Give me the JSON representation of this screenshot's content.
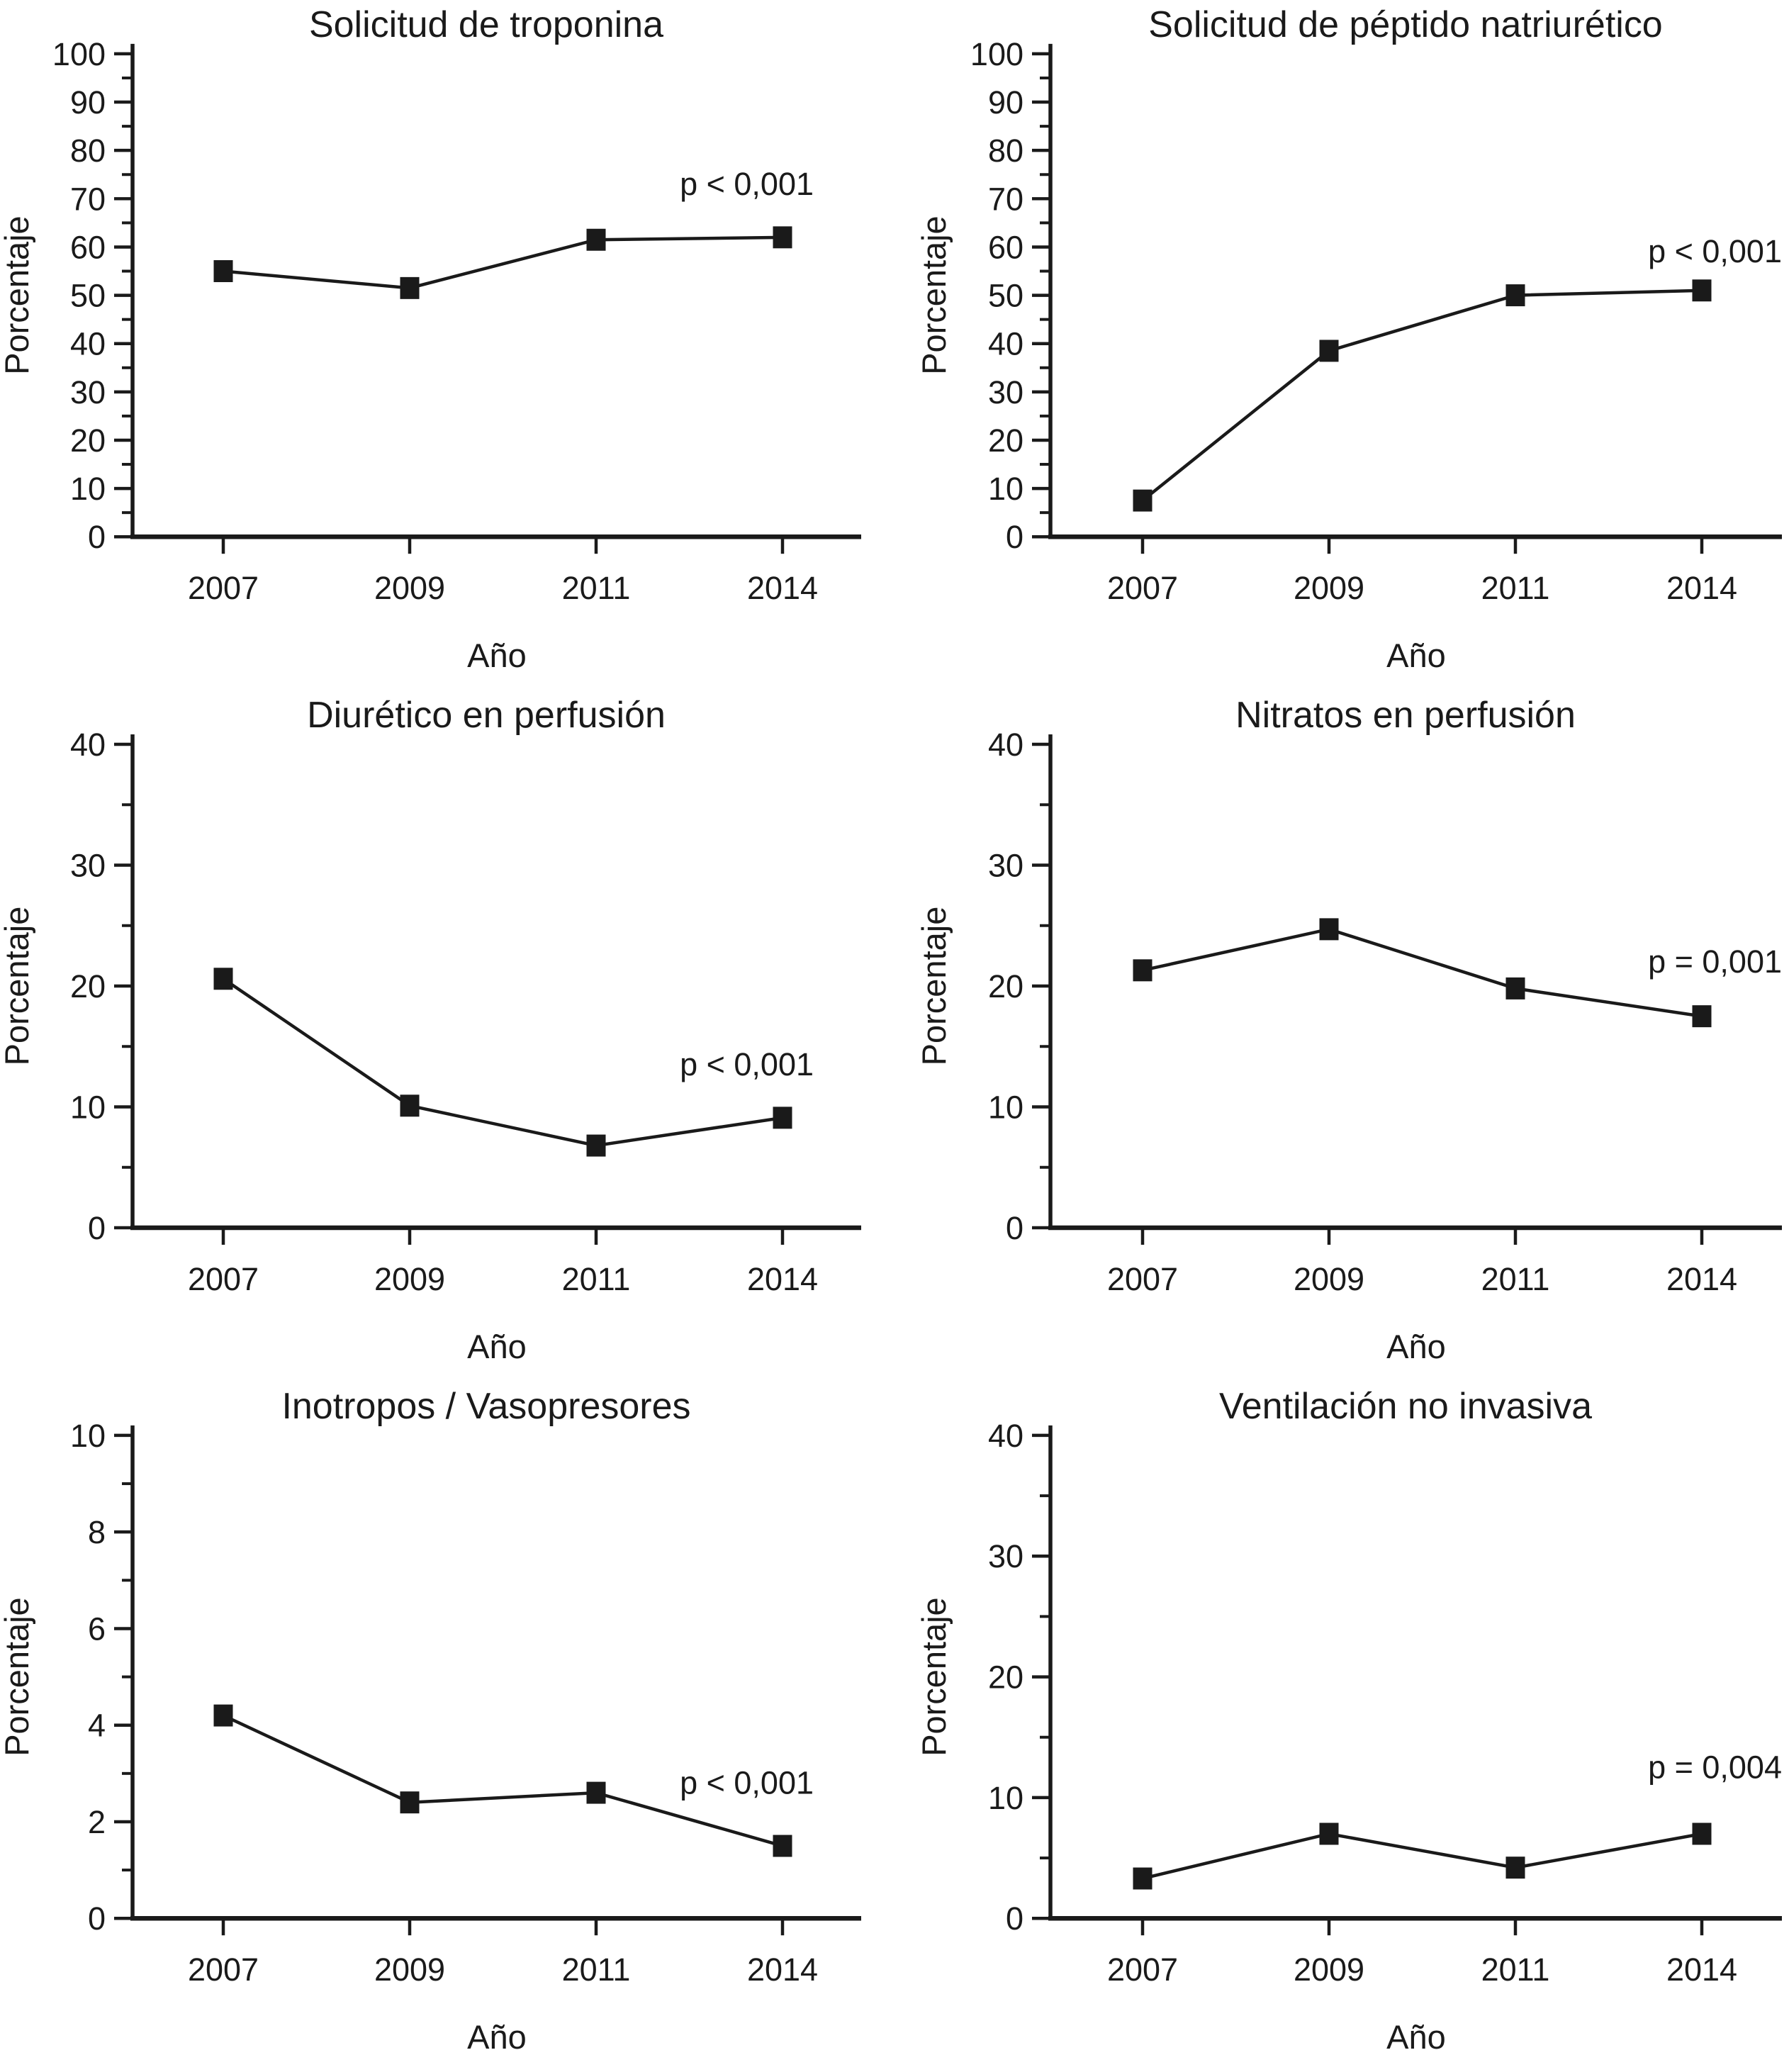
{
  "page": {
    "background": "#ffffff",
    "ink_color": "#1a1a1a"
  },
  "shared": {
    "xlabel": "Año",
    "ylabel": "Porcentaje",
    "categories": [
      "2007",
      "2009",
      "2011",
      "2014"
    ]
  },
  "chart_data": [
    {
      "type": "line",
      "title": "Solicitud de troponina",
      "xlabel": "Año",
      "ylabel": "Porcentaje",
      "categories": [
        "2007",
        "2009",
        "2011",
        "2014"
      ],
      "values": [
        55,
        51.5,
        61.5,
        62
      ],
      "ylim": [
        0,
        100
      ],
      "ytick_major": 10,
      "ytick_minor": 5,
      "annotation": {
        "text": "p < 0,001",
        "y_value": 73
      },
      "grid": false,
      "legend": "none",
      "marker": "filled-square"
    },
    {
      "type": "line",
      "title": "Solicitud de péptido natriurético",
      "xlabel": "Año",
      "ylabel": "Porcentaje",
      "categories": [
        "2007",
        "2009",
        "2011",
        "2014"
      ],
      "values": [
        7.5,
        38.5,
        50,
        51
      ],
      "ylim": [
        0,
        100
      ],
      "ytick_major": 10,
      "ytick_minor": 5,
      "annotation": {
        "text": "p < 0,001",
        "y_value": 59
      },
      "grid": false,
      "legend": "none",
      "marker": "filled-square"
    },
    {
      "type": "line",
      "title": "Diurético en perfusión",
      "xlabel": "Año",
      "ylabel": "Porcentaje",
      "categories": [
        "2007",
        "2009",
        "2011",
        "2014"
      ],
      "values": [
        20.6,
        10.1,
        6.8,
        9.1
      ],
      "ylim": [
        0,
        40
      ],
      "ytick_major": 10,
      "ytick_minor": 5,
      "annotation": {
        "text": "p < 0,001",
        "y_value": 13.5
      },
      "grid": false,
      "legend": "none",
      "marker": "filled-square"
    },
    {
      "type": "line",
      "title": "Nitratos en perfusión",
      "xlabel": "Año",
      "ylabel": "Porcentaje",
      "categories": [
        "2007",
        "2009",
        "2011",
        "2014"
      ],
      "values": [
        21.3,
        24.7,
        19.8,
        17.5
      ],
      "ylim": [
        0,
        40
      ],
      "ytick_major": 10,
      "ytick_minor": 5,
      "annotation": {
        "text": "p = 0,001",
        "y_value": 22
      },
      "grid": false,
      "legend": "none",
      "marker": "filled-square"
    },
    {
      "type": "line",
      "title": "Inotropos / Vasopresores",
      "xlabel": "Año",
      "ylabel": "Porcentaje",
      "categories": [
        "2007",
        "2009",
        "2011",
        "2014"
      ],
      "values": [
        4.2,
        2.4,
        2.6,
        1.5
      ],
      "ylim": [
        0,
        10
      ],
      "ytick_major": 2,
      "ytick_minor": 1,
      "annotation": {
        "text": "p < 0,001",
        "y_value": 2.8
      },
      "grid": false,
      "legend": "none",
      "marker": "filled-square"
    },
    {
      "type": "line",
      "title": "Ventilación no invasiva",
      "xlabel": "Año",
      "ylabel": "Porcentaje",
      "categories": [
        "2007",
        "2009",
        "2011",
        "2014"
      ],
      "values": [
        3.3,
        7,
        4.2,
        7
      ],
      "ylim": [
        0,
        40
      ],
      "ytick_major": 10,
      "ytick_minor": 5,
      "annotation": {
        "text": "p = 0,004",
        "y_value": 12.5
      },
      "grid": false,
      "legend": "none",
      "marker": "filled-square"
    }
  ]
}
